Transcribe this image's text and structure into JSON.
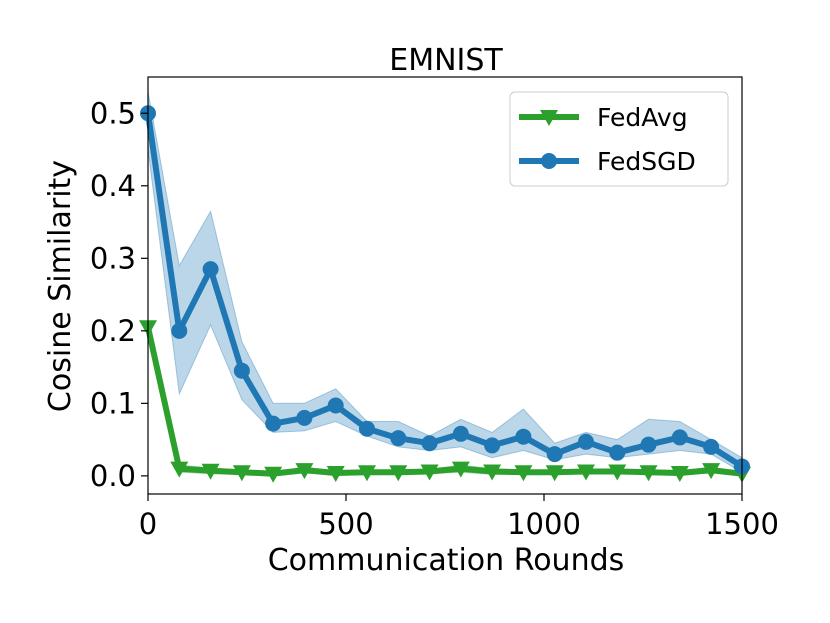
{
  "chart_data": {
    "type": "line",
    "title": "EMNIST",
    "xlabel": "Communication Rounds",
    "ylabel": "Cosine Similarity",
    "xlim": [
      0,
      1500
    ],
    "ylim": [
      -0.025,
      0.55
    ],
    "x_ticks": [
      0,
      500,
      1000,
      1500
    ],
    "x_tick_labels": [
      "0",
      "500",
      "1000",
      "1500"
    ],
    "y_ticks": [
      0.0,
      0.1,
      0.2,
      0.3,
      0.4,
      0.5
    ],
    "y_tick_labels": [
      "0.0",
      "0.1",
      "0.2",
      "0.3",
      "0.4",
      "0.5"
    ],
    "grid": false,
    "legend_position": "top-right",
    "x": [
      0,
      79,
      158,
      237,
      316,
      395,
      474,
      553,
      632,
      711,
      790,
      869,
      948,
      1027,
      1106,
      1185,
      1264,
      1343,
      1422,
      1500
    ],
    "series": [
      {
        "name": "FedAvg",
        "color": "#2ca02c",
        "marker": "triangle-down",
        "values": [
          0.205,
          0.01,
          0.007,
          0.005,
          0.003,
          0.008,
          0.004,
          0.005,
          0.005,
          0.006,
          0.01,
          0.006,
          0.005,
          0.005,
          0.006,
          0.006,
          0.005,
          0.004,
          0.008,
          0.003
        ],
        "lower": [
          0.195,
          0.005,
          0.003,
          0.002,
          0.0,
          0.004,
          0.001,
          0.002,
          0.002,
          0.003,
          0.005,
          0.002,
          0.002,
          0.002,
          0.003,
          0.003,
          0.002,
          0.001,
          0.004,
          0.0
        ],
        "upper": [
          0.215,
          0.015,
          0.011,
          0.008,
          0.006,
          0.012,
          0.007,
          0.008,
          0.008,
          0.009,
          0.015,
          0.01,
          0.008,
          0.008,
          0.009,
          0.009,
          0.008,
          0.007,
          0.012,
          0.006
        ]
      },
      {
        "name": "FedSGD",
        "color": "#1f77b4",
        "marker": "circle",
        "values": [
          0.5,
          0.2,
          0.285,
          0.145,
          0.072,
          0.08,
          0.097,
          0.065,
          0.052,
          0.045,
          0.058,
          0.042,
          0.054,
          0.03,
          0.047,
          0.032,
          0.043,
          0.053,
          0.04,
          0.013
        ],
        "lower": [
          0.45,
          0.113,
          0.208,
          0.105,
          0.06,
          0.062,
          0.075,
          0.055,
          0.04,
          0.035,
          0.04,
          0.025,
          0.035,
          0.022,
          0.03,
          0.025,
          0.03,
          0.035,
          0.03,
          0.005
        ],
        "upper": [
          0.53,
          0.29,
          0.365,
          0.185,
          0.1,
          0.1,
          0.12,
          0.075,
          0.075,
          0.055,
          0.078,
          0.06,
          0.092,
          0.045,
          0.06,
          0.05,
          0.078,
          0.075,
          0.05,
          0.025
        ]
      }
    ]
  }
}
